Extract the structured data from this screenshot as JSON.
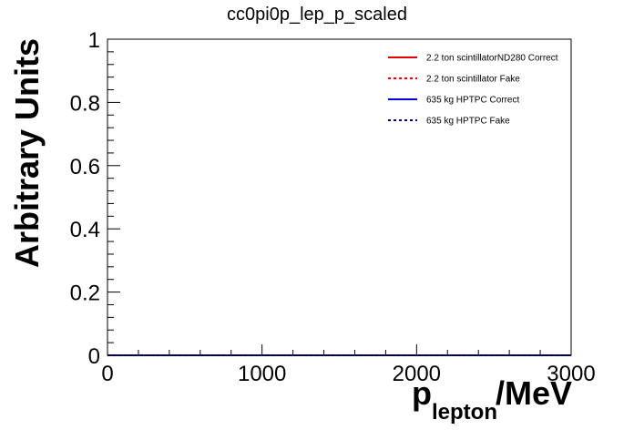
{
  "chart_data": {
    "type": "line",
    "title": "cc0pi0p_lep_p_scaled",
    "ylabel": "Arbitrary Units",
    "xlabel_main": "p",
    "xlabel_sub": "lepton",
    "xlabel_unit": "/MeV",
    "xlim": [
      0,
      3000
    ],
    "ylim": [
      0,
      1
    ],
    "x_ticks": [
      0,
      1000,
      2000,
      3000
    ],
    "y_ticks": [
      0,
      0.2,
      0.4,
      0.6,
      0.8,
      1
    ],
    "x_tick_labels": [
      "0",
      "1000",
      "2000",
      "3000"
    ],
    "y_tick_labels": [
      "0",
      "0.2",
      "0.4",
      "0.6",
      "0.8",
      "1"
    ],
    "grid": false,
    "legend_position": "top-right",
    "series": [
      {
        "name": "2.2 ton scintillatorND280 Correct",
        "color": "#e00000",
        "style": "solid",
        "x": [
          0,
          3000
        ],
        "values": [
          0,
          0
        ]
      },
      {
        "name": "2.2 ton scintillator Fake",
        "color": "#e00000",
        "style": "dotted",
        "x": [
          0,
          3000
        ],
        "values": [
          0,
          0
        ]
      },
      {
        "name": "635 kg HPTPC Correct",
        "color": "#0000e0",
        "style": "solid",
        "x": [
          0,
          3000
        ],
        "values": [
          0,
          0
        ]
      },
      {
        "name": "635 kg HPTPC Fake",
        "color": "#000080",
        "style": "dotted",
        "x": [
          0,
          3000
        ],
        "values": [
          0,
          0
        ]
      }
    ]
  }
}
